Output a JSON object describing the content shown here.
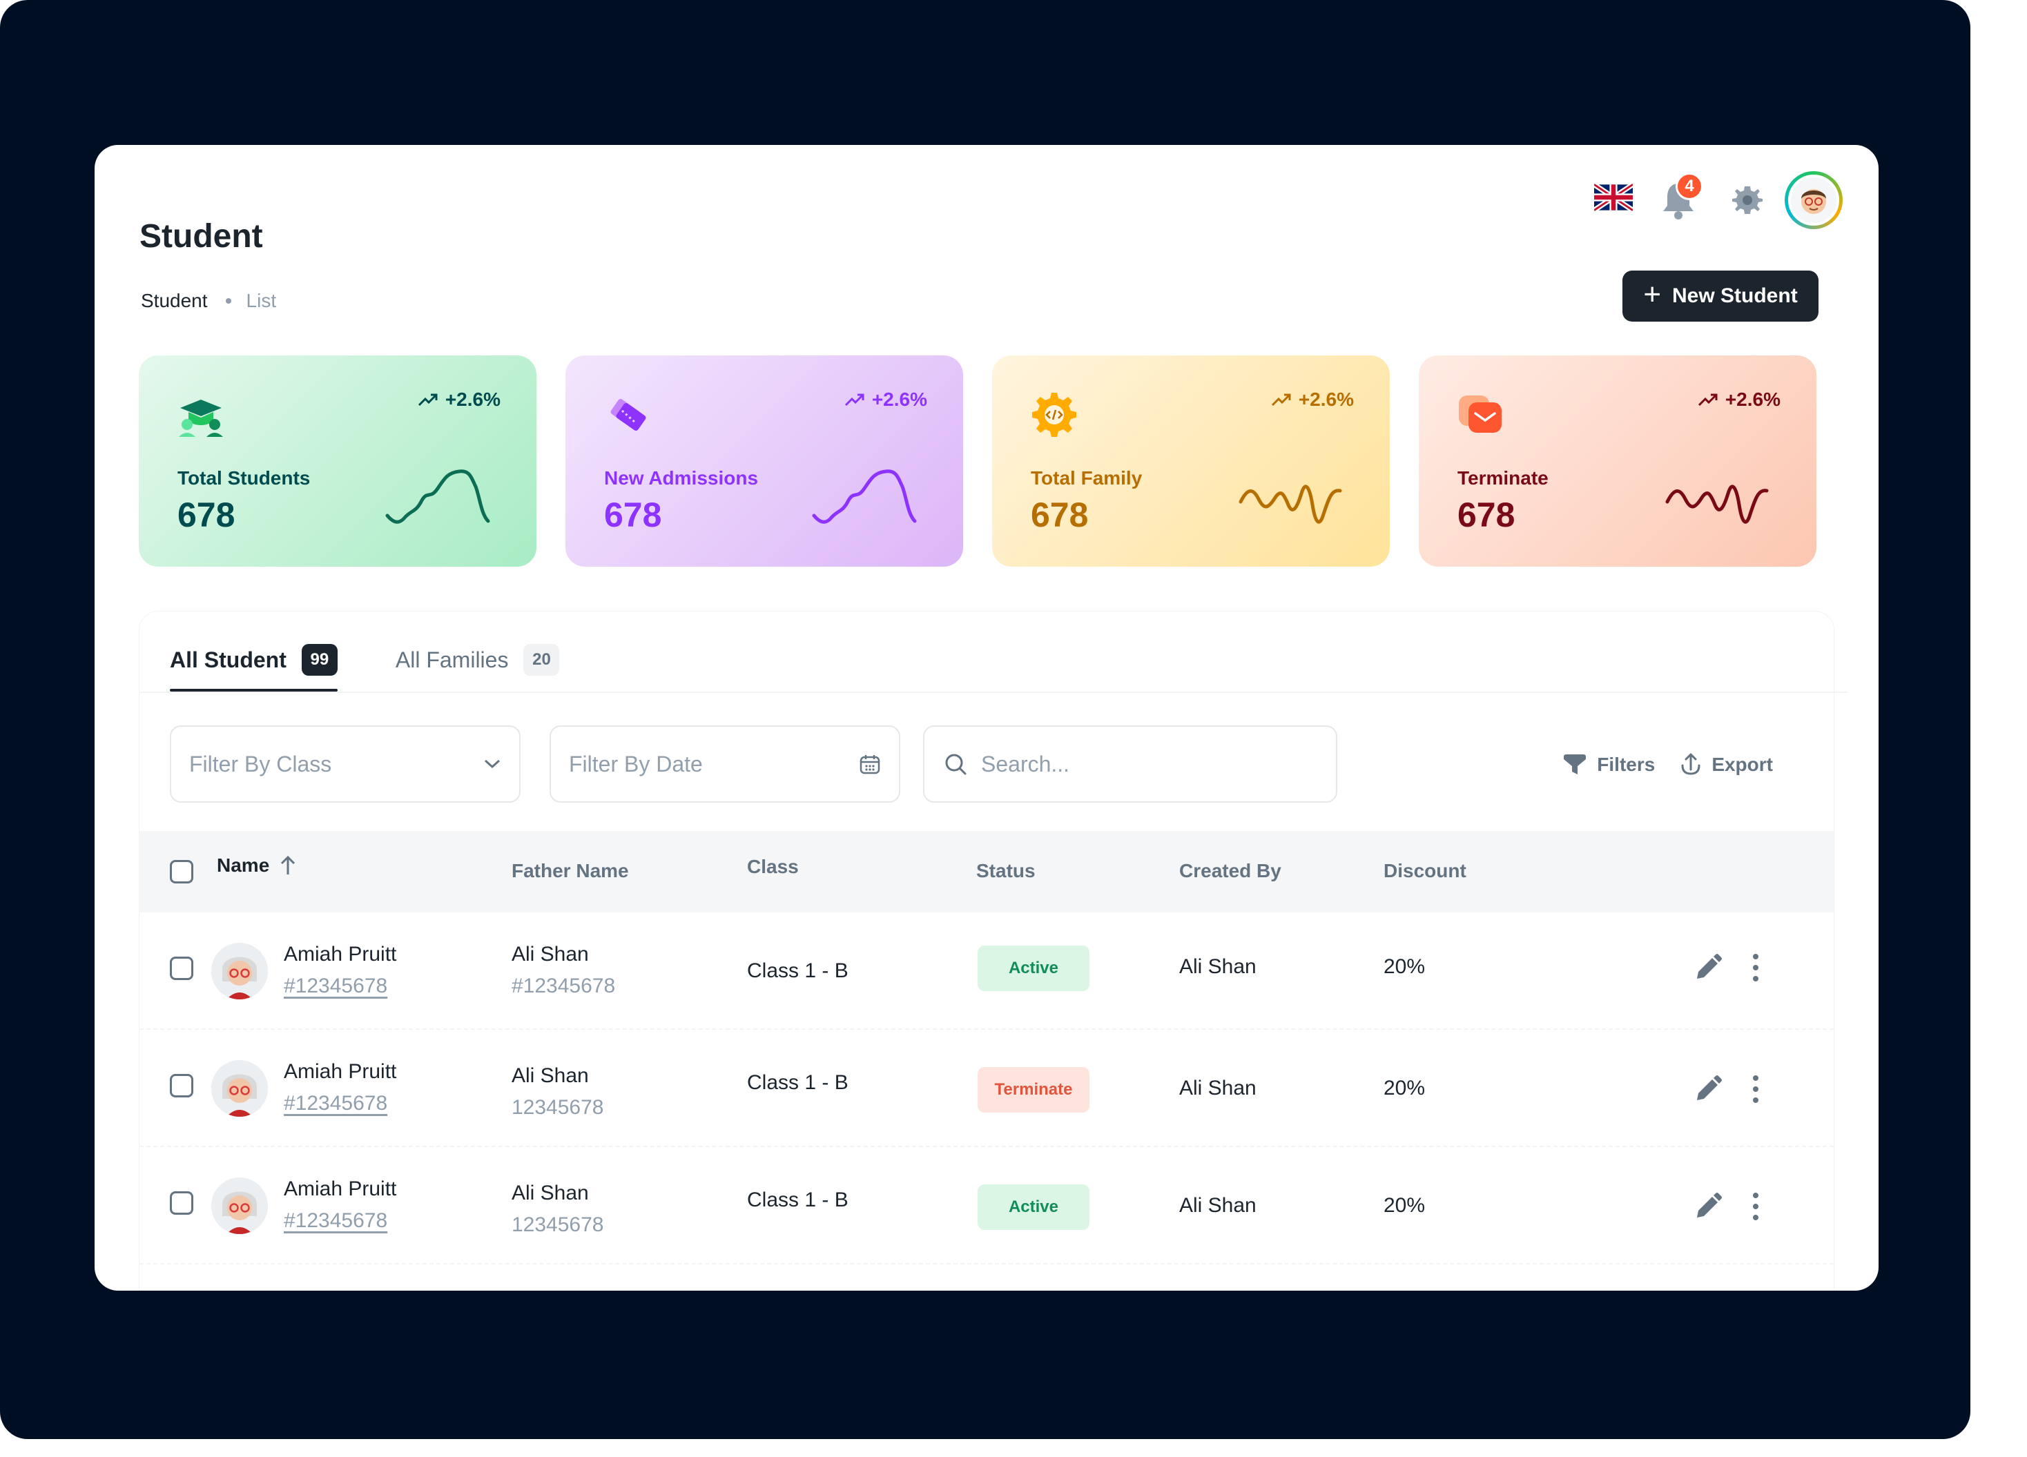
{
  "header": {
    "title": "Student",
    "breadcrumb": [
      "Student",
      "List"
    ],
    "notification_count": "4",
    "new_button_label": "New Student"
  },
  "stats": [
    {
      "label": "Total Students",
      "value": "678",
      "trend": "+2.6%",
      "color": "#004b50",
      "icon": "graduation-cap-icon"
    },
    {
      "label": "New Admissions",
      "value": "678",
      "trend": "+2.6%",
      "color": "#8e33ff",
      "icon": "tickets-icon"
    },
    {
      "label": "Total Family",
      "value": "678",
      "trend": "+2.6%",
      "color": "#b76e00",
      "icon": "gear-code-icon"
    },
    {
      "label": "Terminate",
      "value": "678",
      "trend": "+2.6%",
      "color": "#7a0916",
      "icon": "mail-icon"
    }
  ],
  "tabs": [
    {
      "label": "All Student",
      "count": "99"
    },
    {
      "label": "All Families",
      "count": "20"
    }
  ],
  "filters": {
    "class_placeholder": "Filter By Class",
    "date_placeholder": "Filter By Date",
    "search_placeholder": "Search...",
    "filters_label": "Filters",
    "export_label": "Export"
  },
  "table": {
    "columns": [
      "Name",
      "Father Name",
      "Class",
      "Status",
      "Created By",
      "Discount"
    ],
    "rows": [
      {
        "name": "Amiah Pruitt",
        "id": "#12345678",
        "father": "Ali Shan",
        "father_id": "#12345678",
        "class": "Class 1 - B",
        "status": "Active",
        "created_by": "Ali Shan",
        "discount": "20%"
      },
      {
        "name": "Amiah Pruitt",
        "id": "#12345678",
        "father": "Ali Shan",
        "father_id": "12345678",
        "class": "Class 1 - B",
        "status": "Terminate",
        "created_by": "Ali Shan",
        "discount": "20%"
      },
      {
        "name": "Amiah Pruitt",
        "id": "#12345678",
        "father": "Ali Shan",
        "father_id": "12345678",
        "class": "Class 1 - B",
        "status": "Active",
        "created_by": "Ali Shan",
        "discount": "20%"
      }
    ]
  }
}
